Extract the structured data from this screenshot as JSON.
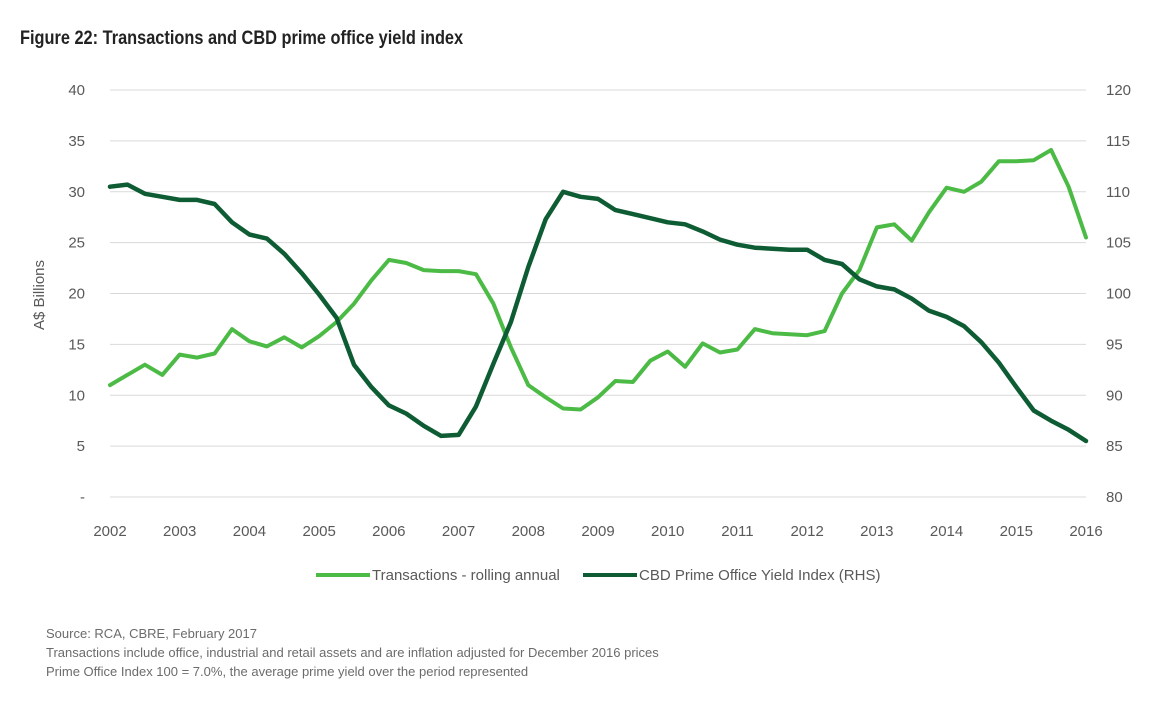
{
  "figure_title": "Figure 22: Transactions and CBD prime office yield index",
  "chart_data": {
    "type": "line",
    "title": "",
    "ylabel": "A$ Billions",
    "y2label": "",
    "x_ticks": [
      "2002",
      "2003",
      "2004",
      "2005",
      "2006",
      "2007",
      "2008",
      "2009",
      "2010",
      "2011",
      "2012",
      "2013",
      "2014",
      "2015",
      "2016"
    ],
    "y_ticks": [
      "-",
      "5",
      "10",
      "15",
      "20",
      "25",
      "30",
      "35",
      "40"
    ],
    "y2_ticks": [
      "80",
      "85",
      "90",
      "95",
      "100",
      "105",
      "110",
      "115",
      "120"
    ],
    "ylim": [
      0,
      40
    ],
    "y2lim": [
      80,
      120
    ],
    "xlim": [
      2002,
      2016
    ],
    "grid": true,
    "legend_position": "bottom",
    "series": [
      {
        "name": "Transactions - rolling annual",
        "axis": "left",
        "color": "#4cbb46",
        "x": [
          2002.0,
          2002.25,
          2002.5,
          2002.75,
          2003.0,
          2003.25,
          2003.5,
          2003.75,
          2004.0,
          2004.25,
          2004.5,
          2004.75,
          2005.0,
          2005.25,
          2005.5,
          2005.75,
          2006.0,
          2006.25,
          2006.5,
          2006.75,
          2007.0,
          2007.25,
          2007.5,
          2007.75,
          2008.0,
          2008.25,
          2008.5,
          2008.75,
          2009.0,
          2009.25,
          2009.5,
          2009.75,
          2010.0,
          2010.25,
          2010.5,
          2010.75,
          2011.0,
          2011.25,
          2011.5,
          2011.75,
          2012.0,
          2012.25,
          2012.5,
          2012.75,
          2013.0,
          2013.25,
          2013.5,
          2013.75,
          2014.0,
          2014.25,
          2014.5,
          2014.75,
          2015.0,
          2015.25,
          2015.5,
          2015.75,
          2016.0
        ],
        "values": [
          11.0,
          12.0,
          13.0,
          12.0,
          14.0,
          13.7,
          14.1,
          16.5,
          15.3,
          14.8,
          15.7,
          14.7,
          15.8,
          17.2,
          19.0,
          21.3,
          23.3,
          23.0,
          22.3,
          22.2,
          22.2,
          21.9,
          19.0,
          14.7,
          11.0,
          9.8,
          8.7,
          8.6,
          9.8,
          11.4,
          11.3,
          13.4,
          14.3,
          12.8,
          15.1,
          14.2,
          14.5,
          16.5,
          16.1,
          16.0,
          15.9,
          16.3,
          20.0,
          22.3,
          26.5,
          26.8,
          25.2,
          28.0,
          30.4,
          30.0,
          31.0,
          33.0,
          33.0,
          33.1,
          34.1,
          30.5,
          25.5
        ]
      },
      {
        "name": "CBD Prime Office Yield Index (RHS)",
        "axis": "right",
        "color": "#0e5c33",
        "x": [
          2002.0,
          2002.25,
          2002.5,
          2002.75,
          2003.0,
          2003.25,
          2003.5,
          2003.75,
          2004.0,
          2004.25,
          2004.5,
          2004.75,
          2005.0,
          2005.25,
          2005.5,
          2005.75,
          2006.0,
          2006.25,
          2006.5,
          2006.75,
          2007.0,
          2007.25,
          2007.5,
          2007.75,
          2008.0,
          2008.25,
          2008.5,
          2008.75,
          2009.0,
          2009.25,
          2009.5,
          2009.75,
          2010.0,
          2010.25,
          2010.5,
          2010.75,
          2011.0,
          2011.25,
          2011.5,
          2011.75,
          2012.0,
          2012.25,
          2012.5,
          2012.75,
          2013.0,
          2013.25,
          2013.5,
          2013.75,
          2014.0,
          2014.25,
          2014.5,
          2014.75,
          2015.0,
          2015.25,
          2015.5,
          2015.75,
          2016.0
        ],
        "values": [
          110.5,
          110.7,
          109.8,
          109.5,
          109.2,
          109.2,
          108.8,
          107.0,
          105.8,
          105.4,
          103.9,
          102.0,
          99.9,
          97.6,
          93.0,
          90.8,
          89.0,
          88.2,
          87.0,
          86.0,
          86.1,
          88.9,
          93.1,
          97.2,
          102.6,
          107.3,
          110.0,
          109.5,
          109.3,
          108.2,
          107.8,
          107.4,
          107.0,
          106.8,
          106.1,
          105.3,
          104.8,
          104.5,
          104.4,
          104.3,
          104.3,
          103.3,
          102.9,
          101.4,
          100.7,
          100.4,
          99.5,
          98.3,
          97.7,
          96.8,
          95.2,
          93.2,
          90.8,
          88.5,
          87.5,
          86.6,
          85.5
        ]
      }
    ]
  },
  "notes": [
    "Source: RCA, CBRE, February 2017",
    "Transactions include office, industrial and retail assets and are inflation adjusted for December 2016 prices",
    "Prime Office Index 100 = 7.0%, the average prime yield over the period represented"
  ]
}
